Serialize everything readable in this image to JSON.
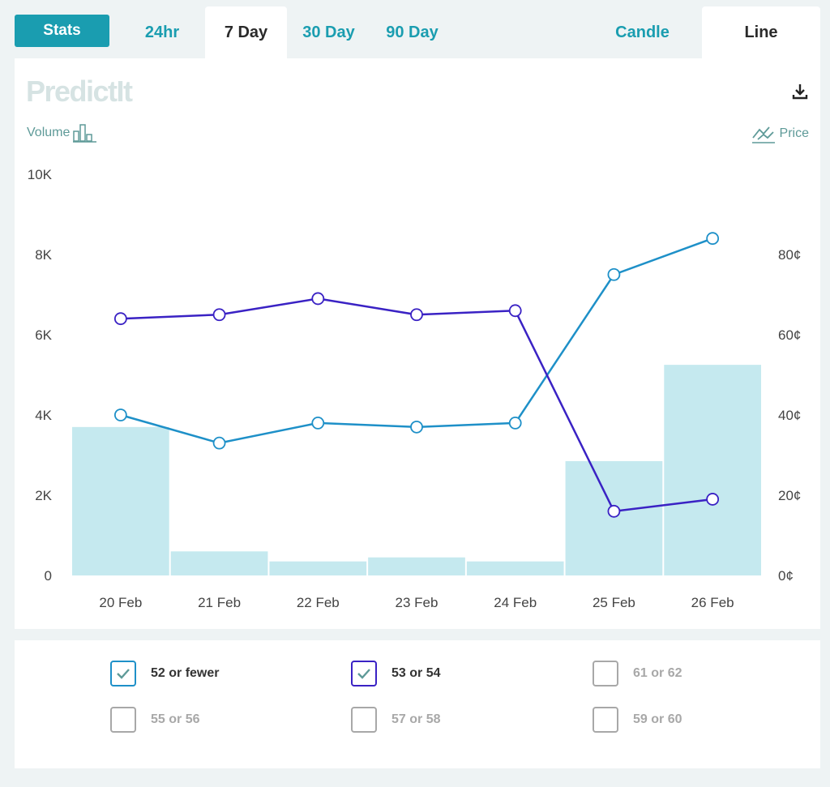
{
  "tabs": {
    "stats": "Stats",
    "t24hr": "24hr",
    "t7day": "7 Day",
    "t30day": "30 Day",
    "t90day": "90 Day",
    "candle": "Candle",
    "line": "Line"
  },
  "logo": "PredictIt",
  "volume_label": "Volume",
  "price_label": "Price",
  "colors": {
    "accent": "#1a9db0",
    "series_52_or_fewer": "#1e90c8",
    "series_53_or_54": "#3a22c4",
    "volume_bar": "#c5e9ef"
  },
  "chart_data": {
    "type": "bar+line",
    "categories": [
      "20 Feb",
      "21 Feb",
      "22 Feb",
      "23 Feb",
      "24 Feb",
      "25 Feb",
      "26 Feb"
    ],
    "volume": {
      "values": [
        3700,
        600,
        350,
        450,
        350,
        2850,
        5250
      ],
      "ylim": [
        0,
        10000
      ],
      "ticks": [
        "0",
        "2K",
        "4K",
        "6K",
        "8K",
        "10K"
      ]
    },
    "price_axis": {
      "ylim": [
        0,
        100
      ],
      "ticks": [
        "0¢",
        "20¢",
        "40¢",
        "60¢",
        "80¢"
      ]
    },
    "series": [
      {
        "name": "52 or fewer",
        "values": [
          40,
          33,
          38,
          37,
          38,
          75,
          84
        ]
      },
      {
        "name": "53 or 54",
        "values": [
          64,
          65,
          69,
          65,
          66,
          16,
          19
        ]
      }
    ]
  },
  "legend": [
    {
      "label": "52 or fewer",
      "checked": true,
      "color": "#1e90c8"
    },
    {
      "label": "53 or 54",
      "checked": true,
      "color": "#3a22c4"
    },
    {
      "label": "61 or 62",
      "checked": false,
      "color": "#9a9a9a"
    },
    {
      "label": "55 or 56",
      "checked": false,
      "color": "#9a9a9a"
    },
    {
      "label": "57 or 58",
      "checked": false,
      "color": "#9a9a9a"
    },
    {
      "label": "59 or 60",
      "checked": false,
      "color": "#9a9a9a"
    }
  ]
}
